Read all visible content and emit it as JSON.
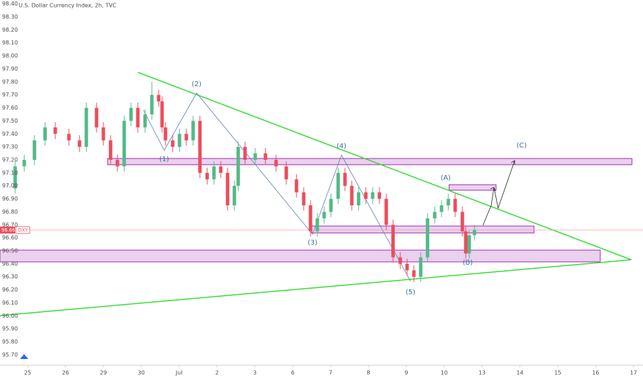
{
  "chart_data": {
    "type": "candlestick",
    "title": "U.S. Dollar Currency Index, 2h, TVC",
    "symbol": "DXY",
    "last_price": 96.66,
    "x": [
      -0.33,
      -0.09,
      0.18,
      0.46,
      0.73,
      1.09,
      1.37,
      1.55,
      1.82,
      2.0,
      2.19,
      2.37,
      2.55,
      2.73,
      2.91,
      3.1,
      3.28,
      3.46,
      3.55,
      3.64,
      3.83,
      4.01,
      4.19,
      4.37,
      4.55,
      4.74,
      4.92,
      5.1,
      5.28,
      5.46,
      5.56,
      5.74,
      6.01,
      6.28,
      6.56,
      6.83,
      7.1,
      7.29,
      7.47,
      7.65,
      7.83,
      8.01,
      8.2,
      8.38,
      8.56,
      8.74,
      8.93,
      9.11,
      9.29,
      9.47,
      9.65,
      9.84,
      10.02,
      10.2,
      10.38,
      10.56,
      10.75,
      10.93,
      11.11,
      11.29,
      11.48,
      11.57,
      11.66,
      11.8
    ],
    "open": [
      96.98,
      97.15,
      97.2,
      97.35,
      97.45,
      97.4,
      97.35,
      97.3,
      97.6,
      97.45,
      97.35,
      97.2,
      97.15,
      97.5,
      97.6,
      97.45,
      97.55,
      97.7,
      97.65,
      97.45,
      97.35,
      97.3,
      97.4,
      97.35,
      97.5,
      97.1,
      97.05,
      97.15,
      97.1,
      96.85,
      97.0,
      97.3,
      97.2,
      97.25,
      97.2,
      97.15,
      97.05,
      96.95,
      96.85,
      96.65,
      96.75,
      96.8,
      96.9,
      97.1,
      97.0,
      96.85,
      96.95,
      96.9,
      96.95,
      96.9,
      96.7,
      96.45,
      96.4,
      96.35,
      96.3,
      96.45,
      96.75,
      96.8,
      96.85,
      96.9,
      96.8,
      96.65,
      96.48,
      96.62
    ],
    "high": [
      97.19,
      97.24,
      97.39,
      97.49,
      97.49,
      97.44,
      97.39,
      97.64,
      97.64,
      97.49,
      97.39,
      97.24,
      97.54,
      97.64,
      97.64,
      97.59,
      97.8,
      97.74,
      97.69,
      97.49,
      97.39,
      97.44,
      97.44,
      97.54,
      97.54,
      97.14,
      97.19,
      97.19,
      97.14,
      97.04,
      97.34,
      97.34,
      97.29,
      97.29,
      97.24,
      97.19,
      97.09,
      96.99,
      96.89,
      96.79,
      96.84,
      96.94,
      97.14,
      97.14,
      97.04,
      96.99,
      96.99,
      96.99,
      96.99,
      96.94,
      96.74,
      96.49,
      96.44,
      96.39,
      96.49,
      96.79,
      96.84,
      96.89,
      96.94,
      96.94,
      96.84,
      96.69,
      96.66,
      96.7
    ],
    "low": [
      96.94,
      97.11,
      97.16,
      97.31,
      97.36,
      97.31,
      97.26,
      97.26,
      97.41,
      97.31,
      97.16,
      97.11,
      97.11,
      97.46,
      97.41,
      97.41,
      97.51,
      97.61,
      97.41,
      97.31,
      97.26,
      97.26,
      97.31,
      97.31,
      97.06,
      97.01,
      97.01,
      97.06,
      96.81,
      96.81,
      96.96,
      97.16,
      97.16,
      97.16,
      97.11,
      97.01,
      96.91,
      96.81,
      96.61,
      96.61,
      96.71,
      96.76,
      96.86,
      96.96,
      96.81,
      96.81,
      96.86,
      96.86,
      96.86,
      96.66,
      96.41,
      96.36,
      96.31,
      96.26,
      96.26,
      96.41,
      96.71,
      96.76,
      96.81,
      96.76,
      96.61,
      96.44,
      96.44,
      96.58
    ],
    "close": [
      97.15,
      97.2,
      97.35,
      97.45,
      97.4,
      97.35,
      97.3,
      97.6,
      97.45,
      97.35,
      97.2,
      97.15,
      97.5,
      97.6,
      97.45,
      97.55,
      97.7,
      97.65,
      97.45,
      97.35,
      97.3,
      97.4,
      97.35,
      97.5,
      97.1,
      97.05,
      97.15,
      97.1,
      96.85,
      97.0,
      97.3,
      97.2,
      97.25,
      97.2,
      97.15,
      97.05,
      96.95,
      96.85,
      96.65,
      96.75,
      96.8,
      96.9,
      97.1,
      97.0,
      96.85,
      96.95,
      96.9,
      96.95,
      96.9,
      96.7,
      96.45,
      96.4,
      96.35,
      96.3,
      96.45,
      96.75,
      96.8,
      96.85,
      96.9,
      96.8,
      96.65,
      96.48,
      96.62,
      96.66
    ],
    "up_color": "#53b987",
    "down_color": "#eb4d5c",
    "xlim": [
      -0.73,
      16.25
    ],
    "ylim": [
      95.62,
      98.43
    ],
    "xticks": [
      {
        "value": 0,
        "label": "25"
      },
      {
        "value": 1,
        "label": "26"
      },
      {
        "value": 2,
        "label": "29"
      },
      {
        "value": 3,
        "label": "30"
      },
      {
        "value": 4,
        "label": "Jul"
      },
      {
        "value": 5,
        "label": "2"
      },
      {
        "value": 6,
        "label": "3"
      },
      {
        "value": 7,
        "label": "6"
      },
      {
        "value": 8,
        "label": "7"
      },
      {
        "value": 9,
        "label": "8"
      },
      {
        "value": 10,
        "label": "9"
      },
      {
        "value": 11,
        "label": "10"
      },
      {
        "value": 12,
        "label": "13"
      },
      {
        "value": 13,
        "label": "14"
      },
      {
        "value": 14,
        "label": "15"
      },
      {
        "value": 15,
        "label": "16"
      },
      {
        "value": 16,
        "label": "17"
      }
    ],
    "yticks": [
      {
        "value": 95.7,
        "label": "95.70"
      },
      {
        "value": 95.8,
        "label": "95.80"
      },
      {
        "value": 95.9,
        "label": "95.90"
      },
      {
        "value": 96.0,
        "label": "96.00"
      },
      {
        "value": 96.1,
        "label": "96.10"
      },
      {
        "value": 96.2,
        "label": "96.20"
      },
      {
        "value": 96.3,
        "label": "96.30"
      },
      {
        "value": 96.4,
        "label": "96.40"
      },
      {
        "value": 96.5,
        "label": "96.50"
      },
      {
        "value": 96.6,
        "label": "96.60"
      },
      {
        "value": 96.7,
        "label": "96.70"
      },
      {
        "value": 96.8,
        "label": "96.80"
      },
      {
        "value": 96.9,
        "label": "96.90"
      },
      {
        "value": 97.0,
        "label": "97.00"
      },
      {
        "value": 97.1,
        "label": "97.10"
      },
      {
        "value": 97.2,
        "label": "97.20"
      },
      {
        "value": 97.3,
        "label": "97.30"
      },
      {
        "value": 97.4,
        "label": "97.40"
      },
      {
        "value": 97.5,
        "label": "97.50"
      },
      {
        "value": 97.6,
        "label": "97.60"
      },
      {
        "value": 97.7,
        "label": "97.70"
      },
      {
        "value": 97.8,
        "label": "97.80"
      },
      {
        "value": 97.9,
        "label": "97.90"
      },
      {
        "value": 98.0,
        "label": "98.00"
      },
      {
        "value": 98.1,
        "label": "98.10"
      },
      {
        "value": 98.2,
        "label": "98.20"
      },
      {
        "value": 98.3,
        "label": "98.30"
      },
      {
        "value": 98.4,
        "label": "98.40"
      }
    ],
    "grid": false,
    "annotations": [
      "(1)",
      "(2)",
      "(3)",
      "(4)",
      "(5)",
      "(A)",
      "(B)",
      "(C)"
    ]
  }
}
